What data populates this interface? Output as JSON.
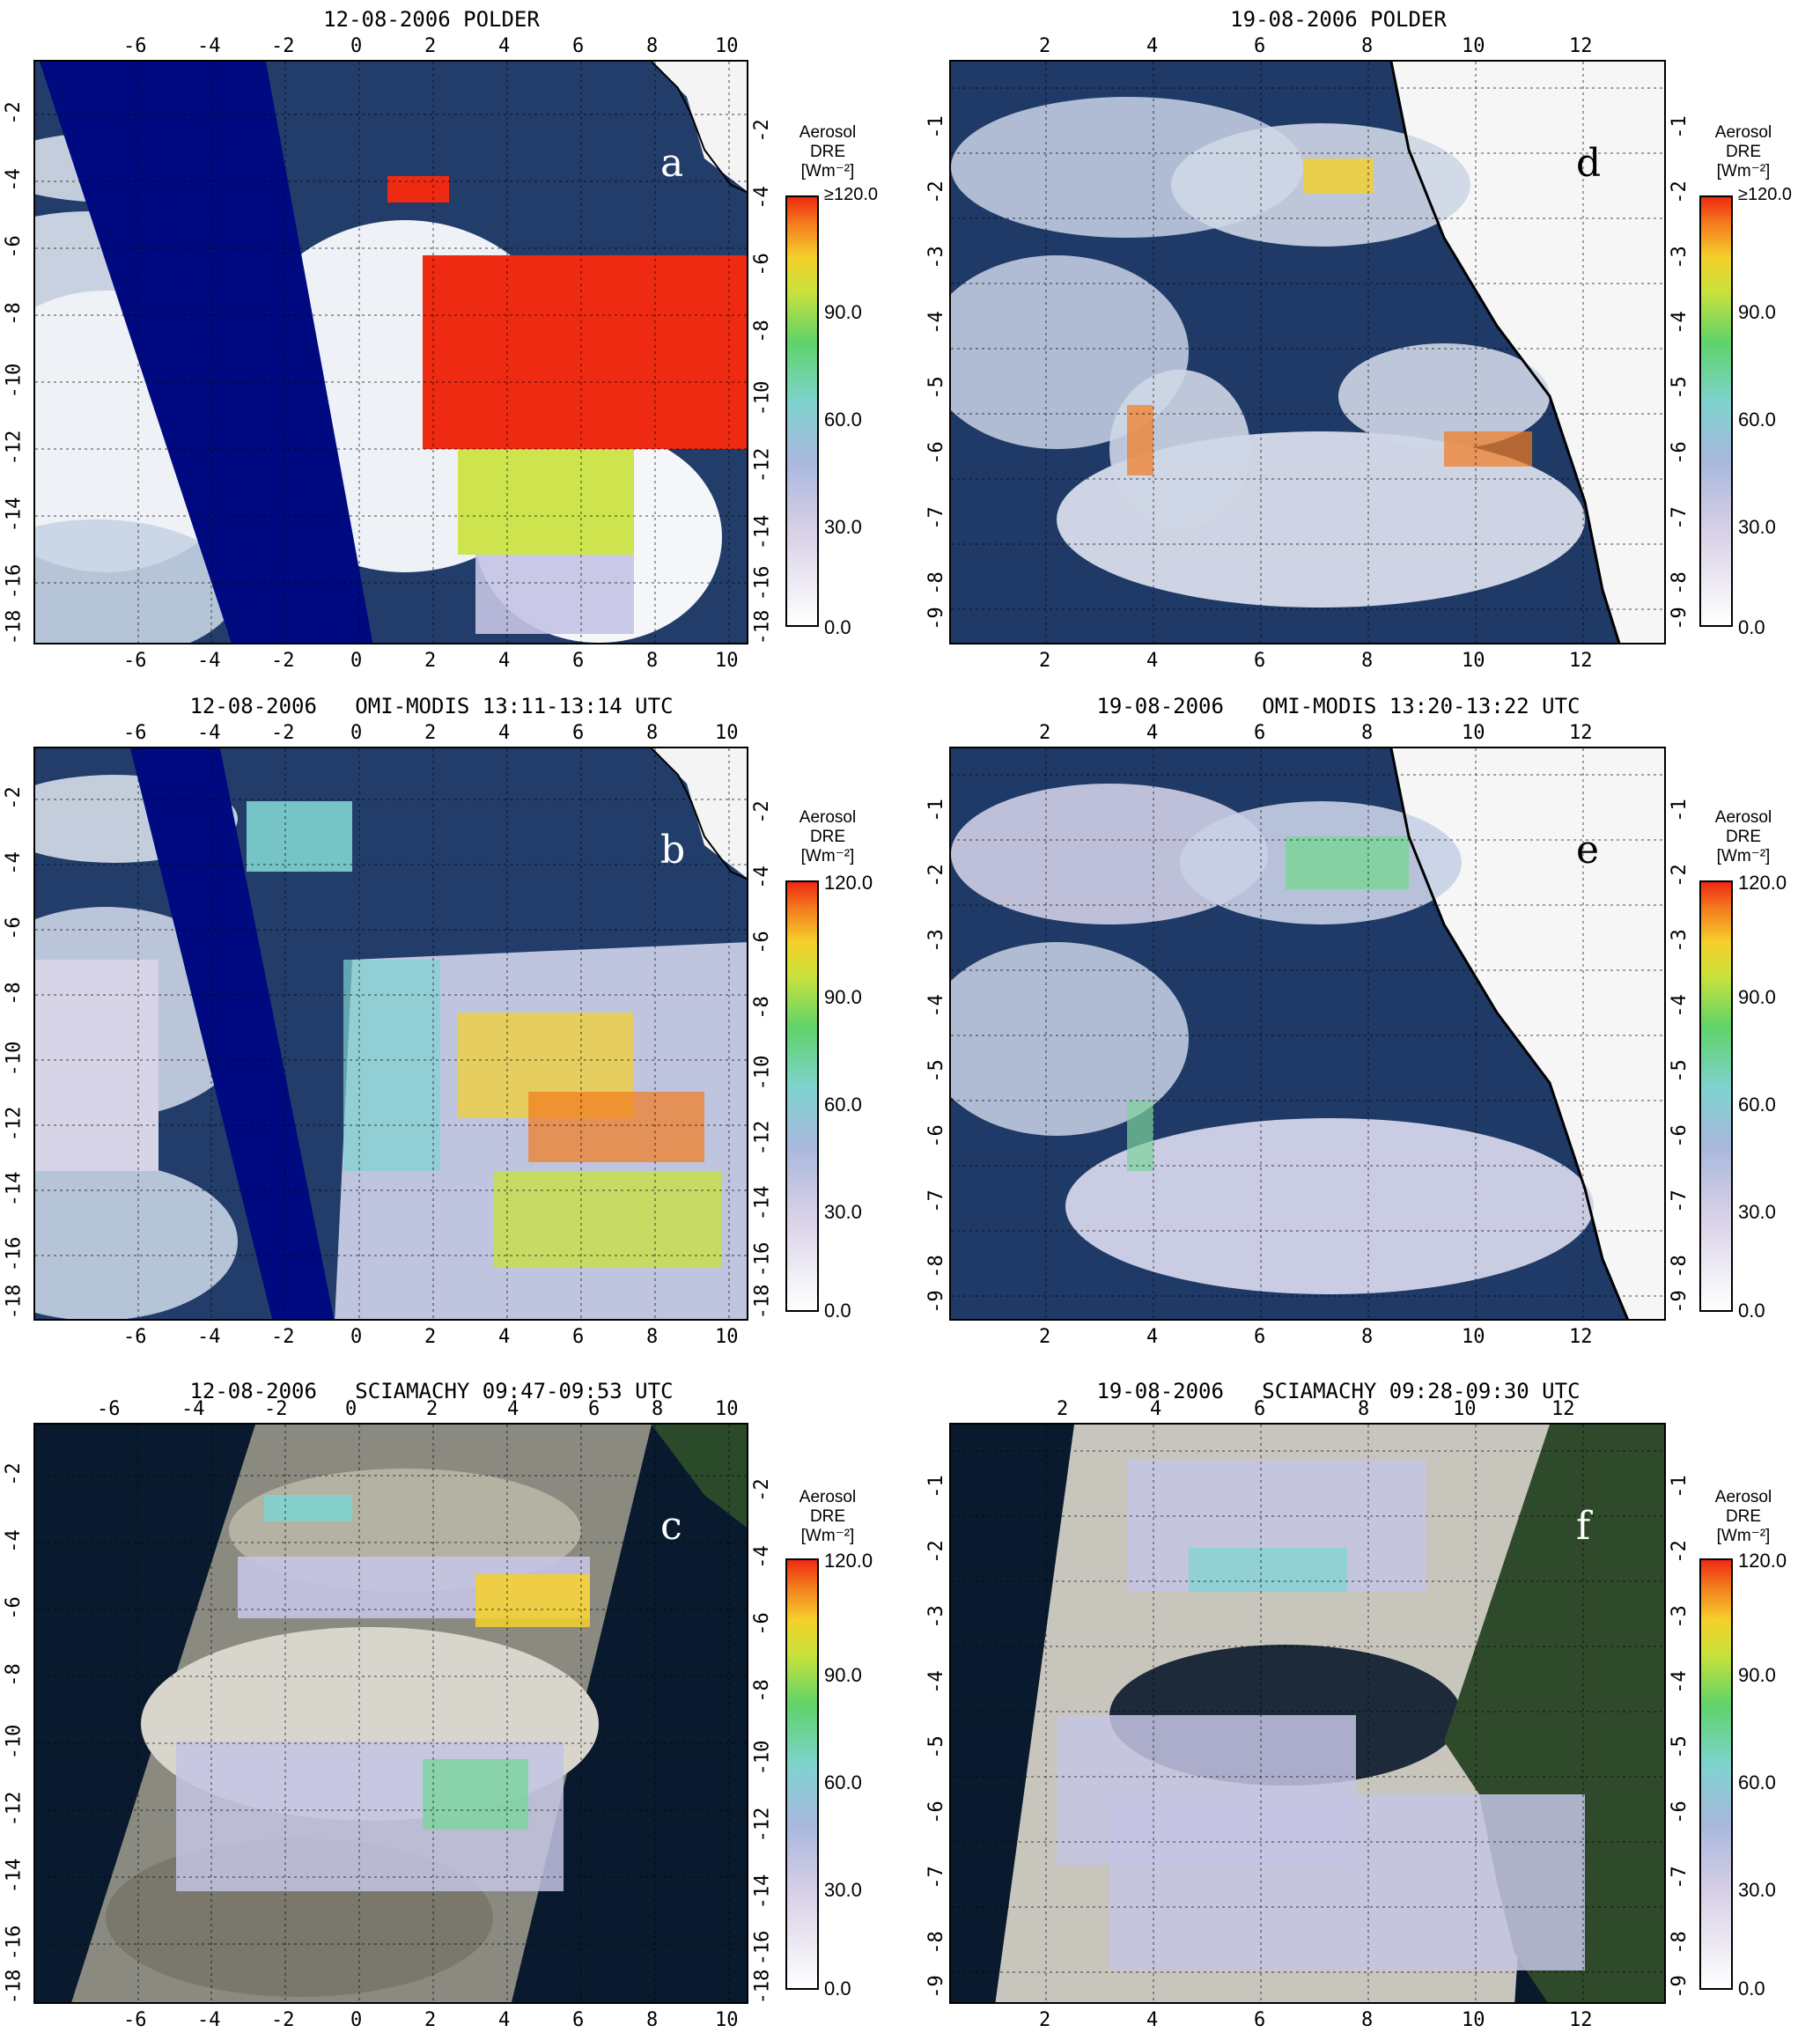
{
  "panels": [
    {
      "id": "a",
      "title": "12-08-2006 POLDER",
      "letter": "a",
      "x_ticks": [
        "-6",
        "-4",
        "-2",
        "0",
        "2",
        "4",
        "6",
        "8",
        "10"
      ],
      "y_ticks": [
        "-2",
        "-4",
        "-6",
        "-8",
        "-10",
        "-12",
        "-14",
        "-16",
        "-18"
      ],
      "colorbar": {
        "label_line1": "Aerosol",
        "label_line2": "DRE",
        "label_line3": "[Wm⁻²]",
        "values": [
          "≥120.0",
          "90.0",
          "60.0",
          "30.0",
          "0.0"
        ]
      }
    },
    {
      "id": "d",
      "title": "19-08-2006 POLDER",
      "letter": "d",
      "x_ticks": [
        "2",
        "4",
        "6",
        "8",
        "10",
        "12"
      ],
      "y_ticks": [
        "-1",
        "-2",
        "-3",
        "-4",
        "-5",
        "-6",
        "-7",
        "-8",
        "-9"
      ],
      "colorbar": {
        "label_line1": "Aerosol",
        "label_line2": "DRE",
        "label_line3": "[Wm⁻²]",
        "values": [
          "≥120.0",
          "90.0",
          "60.0",
          "30.0",
          "0.0"
        ]
      }
    },
    {
      "id": "b",
      "title": "12-08-2006   OMI-MODIS 13:11-13:14 UTC",
      "letter": "b",
      "x_ticks": [
        "-6",
        "-4",
        "-2",
        "0",
        "2",
        "4",
        "6",
        "8",
        "10"
      ],
      "y_ticks": [
        "-2",
        "-4",
        "-6",
        "-8",
        "-10",
        "-12",
        "-14",
        "-16",
        "-18"
      ],
      "colorbar": {
        "label_line1": "Aerosol",
        "label_line2": "DRE",
        "label_line3": "[Wm⁻²]",
        "values": [
          "120.0",
          "90.0",
          "60.0",
          "30.0",
          "0.0"
        ]
      }
    },
    {
      "id": "e",
      "title": "19-08-2006   OMI-MODIS 13:20-13:22 UTC",
      "letter": "e",
      "x_ticks": [
        "2",
        "4",
        "6",
        "8",
        "10",
        "12"
      ],
      "y_ticks": [
        "-1",
        "-2",
        "-3",
        "-4",
        "-5",
        "-6",
        "-7",
        "-8",
        "-9"
      ],
      "colorbar": {
        "label_line1": "Aerosol",
        "label_line2": "DRE",
        "label_line3": "[Wm⁻²]",
        "values": [
          "120.0",
          "90.0",
          "60.0",
          "30.0",
          "0.0"
        ]
      }
    },
    {
      "id": "c",
      "title": "12-08-2006   SCIAMACHY 09:47-09:53 UTC",
      "letter": "c",
      "x_ticks": [
        "-6",
        "-4",
        "-2",
        "0",
        "2",
        "4",
        "6",
        "8",
        "10"
      ],
      "y_ticks": [
        "-2",
        "-4",
        "-6",
        "-8",
        "-10",
        "-12",
        "-14",
        "-16",
        "-18"
      ],
      "colorbar": {
        "label_line1": "Aerosol",
        "label_line2": "DRE",
        "label_line3": "[Wm⁻²]",
        "values": [
          "120.0",
          "90.0",
          "60.0",
          "30.0",
          "0.0"
        ]
      }
    },
    {
      "id": "f",
      "title": "19-08-2006   SCIAMACHY 09:28-09:30 UTC",
      "letter": "f",
      "x_ticks": [
        "2",
        "4",
        "6",
        "8",
        "10",
        "12"
      ],
      "y_ticks": [
        "-1",
        "-2",
        "-3",
        "-4",
        "-5",
        "-6",
        "-7",
        "-8",
        "-9"
      ],
      "colorbar": {
        "label_line1": "Aerosol",
        "label_line2": "DRE",
        "label_line3": "[Wm⁻²]",
        "values": [
          "120.0",
          "90.0",
          "60.0",
          "30.0",
          "0.0"
        ]
      }
    }
  ],
  "colors": {
    "ocean": "#1f3a66",
    "cloud": "#e8ecf2",
    "land": "#f4f4f4",
    "swath_gap": "#000a80",
    "sciamachy_bg": "#0a1a2e",
    "high": "#ee2a12",
    "mid": "#5fd36a",
    "low": "#c4c4e4"
  }
}
